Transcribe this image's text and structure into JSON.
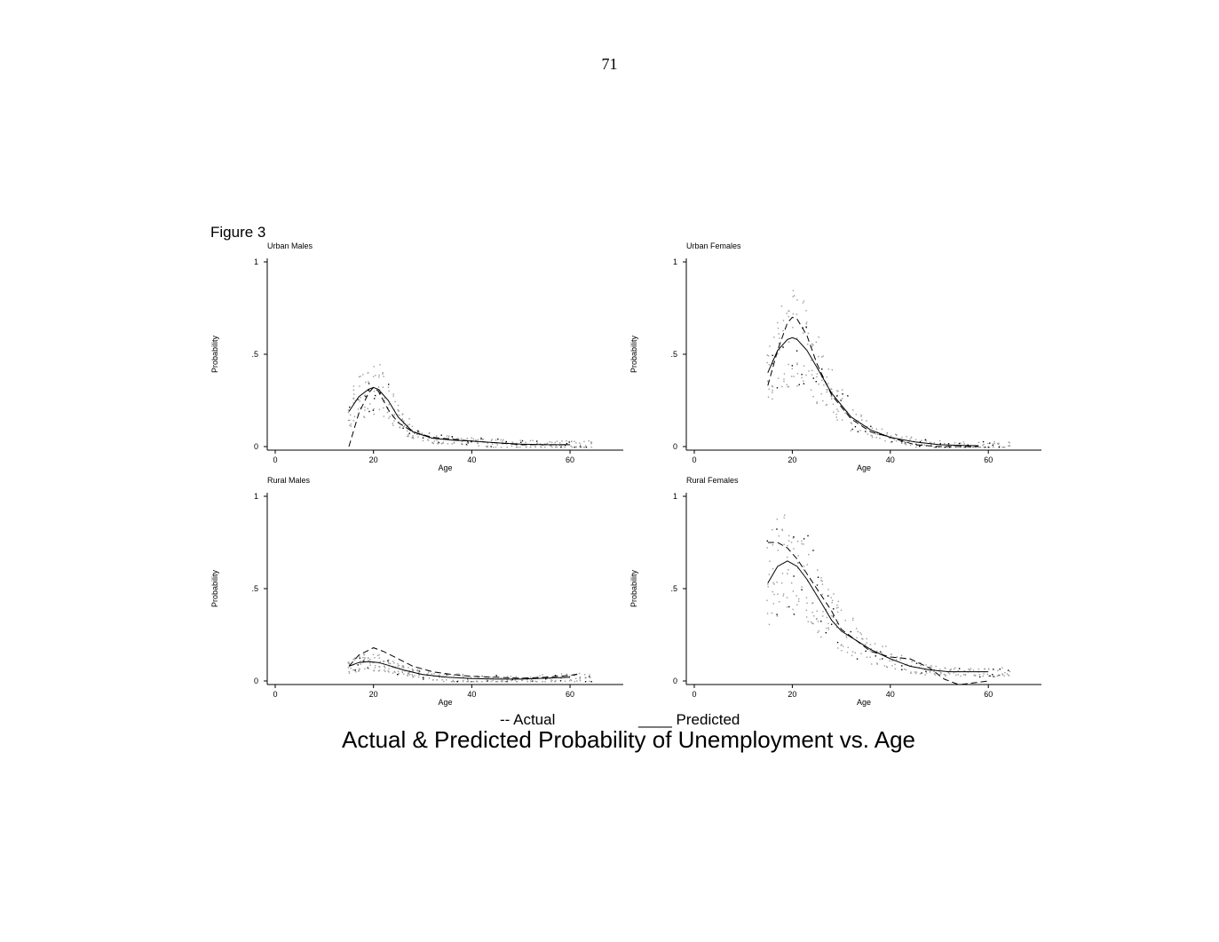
{
  "page_number": "71",
  "figure_label": "Figure 3",
  "legend": {
    "actual": "-- Actual",
    "predicted": "____ Predicted"
  },
  "title": "Actual & Predicted Probability of Unemployment vs. Age",
  "colors": {
    "line": "#000000",
    "scatter": "#9a9a9a",
    "axis": "#000000"
  },
  "chart_data": [
    {
      "type": "line",
      "title": "Urban Males",
      "xlabel": "Age",
      "ylabel": "Probability",
      "xlim": [
        0,
        65
      ],
      "ylim": [
        0,
        1
      ],
      "x_ticks": [
        "0",
        "20",
        "40",
        "60"
      ],
      "y_ticks": [
        "0",
        ".5",
        "1"
      ],
      "series": [
        {
          "name": "Actual",
          "style": "dashed",
          "x": [
            15,
            17,
            19,
            20,
            21,
            23,
            25,
            28,
            32,
            36,
            40,
            45,
            50,
            55,
            60
          ],
          "y": [
            0.0,
            0.18,
            0.29,
            0.32,
            0.3,
            0.2,
            0.13,
            0.08,
            0.05,
            0.04,
            0.03,
            0.02,
            0.01,
            0.01,
            0.01
          ]
        },
        {
          "name": "Predicted",
          "style": "solid",
          "x": [
            15,
            17,
            19,
            20,
            21,
            23,
            25,
            28,
            32,
            36,
            40,
            45,
            50,
            55,
            60
          ],
          "y": [
            0.19,
            0.27,
            0.31,
            0.32,
            0.31,
            0.25,
            0.16,
            0.08,
            0.045,
            0.035,
            0.03,
            0.02,
            0.013,
            0.01,
            0.01
          ]
        }
      ]
    },
    {
      "type": "line",
      "title": "Urban Females",
      "xlabel": "Age",
      "ylabel": "Probability",
      "xlim": [
        0,
        65
      ],
      "ylim": [
        0,
        1
      ],
      "x_ticks": [
        "0",
        "20",
        "40",
        "60"
      ],
      "y_ticks": [
        "0",
        ".5",
        "1"
      ],
      "series": [
        {
          "name": "Actual",
          "style": "dashed",
          "x": [
            15,
            17,
            19,
            20,
            21,
            23,
            25,
            28,
            32,
            36,
            40,
            45,
            50,
            55,
            58
          ],
          "y": [
            0.33,
            0.52,
            0.67,
            0.7,
            0.69,
            0.6,
            0.45,
            0.28,
            0.15,
            0.08,
            0.05,
            0.01,
            0.0,
            0.0,
            0.0
          ]
        },
        {
          "name": "Predicted",
          "style": "solid",
          "x": [
            15,
            17,
            19,
            20,
            21,
            23,
            25,
            28,
            32,
            36,
            40,
            45,
            50,
            55,
            58
          ],
          "y": [
            0.4,
            0.52,
            0.58,
            0.59,
            0.58,
            0.52,
            0.43,
            0.29,
            0.16,
            0.09,
            0.05,
            0.025,
            0.01,
            0.006,
            0.005
          ]
        }
      ]
    },
    {
      "type": "line",
      "title": "Rural Males",
      "xlabel": "Age",
      "ylabel": "Probability",
      "xlim": [
        0,
        65
      ],
      "ylim": [
        0,
        1
      ],
      "x_ticks": [
        "0",
        "20",
        "40",
        "60"
      ],
      "y_ticks": [
        "0",
        ".5",
        "1"
      ],
      "series": [
        {
          "name": "Actual",
          "style": "dashed",
          "x": [
            15,
            17,
            20,
            22,
            25,
            28,
            32,
            36,
            40,
            45,
            50,
            55,
            60,
            62
          ],
          "y": [
            0.08,
            0.14,
            0.18,
            0.16,
            0.12,
            0.08,
            0.05,
            0.035,
            0.025,
            0.02,
            0.015,
            0.02,
            0.03,
            0.04
          ]
        },
        {
          "name": "Predicted",
          "style": "solid",
          "x": [
            15,
            17,
            19,
            21,
            23,
            26,
            30,
            35,
            40,
            45,
            50,
            55,
            60
          ],
          "y": [
            0.08,
            0.1,
            0.105,
            0.1,
            0.085,
            0.06,
            0.035,
            0.02,
            0.013,
            0.01,
            0.01,
            0.015,
            0.02
          ]
        }
      ]
    },
    {
      "type": "line",
      "title": "Rural Females",
      "xlabel": "Age",
      "ylabel": "Probability",
      "xlim": [
        0,
        65
      ],
      "ylim": [
        0,
        1
      ],
      "x_ticks": [
        "0",
        "20",
        "40",
        "60"
      ],
      "y_ticks": [
        "0",
        ".5",
        "1"
      ],
      "series": [
        {
          "name": "Actual",
          "style": "dashed",
          "x": [
            15,
            17,
            19,
            21,
            23,
            26,
            28,
            30,
            33,
            36,
            40,
            44,
            48,
            51,
            54,
            57,
            60
          ],
          "y": [
            0.75,
            0.75,
            0.72,
            0.66,
            0.58,
            0.46,
            0.38,
            0.28,
            0.22,
            0.16,
            0.13,
            0.12,
            0.07,
            0.01,
            -0.02,
            -0.01,
            0.0
          ]
        },
        {
          "name": "Predicted",
          "style": "solid",
          "x": [
            15,
            17,
            19,
            21,
            23,
            26,
            28,
            30,
            33,
            36,
            40,
            44,
            48,
            52,
            56,
            60
          ],
          "y": [
            0.53,
            0.62,
            0.65,
            0.62,
            0.55,
            0.42,
            0.33,
            0.27,
            0.22,
            0.17,
            0.12,
            0.08,
            0.06,
            0.05,
            0.05,
            0.05
          ]
        }
      ]
    }
  ]
}
